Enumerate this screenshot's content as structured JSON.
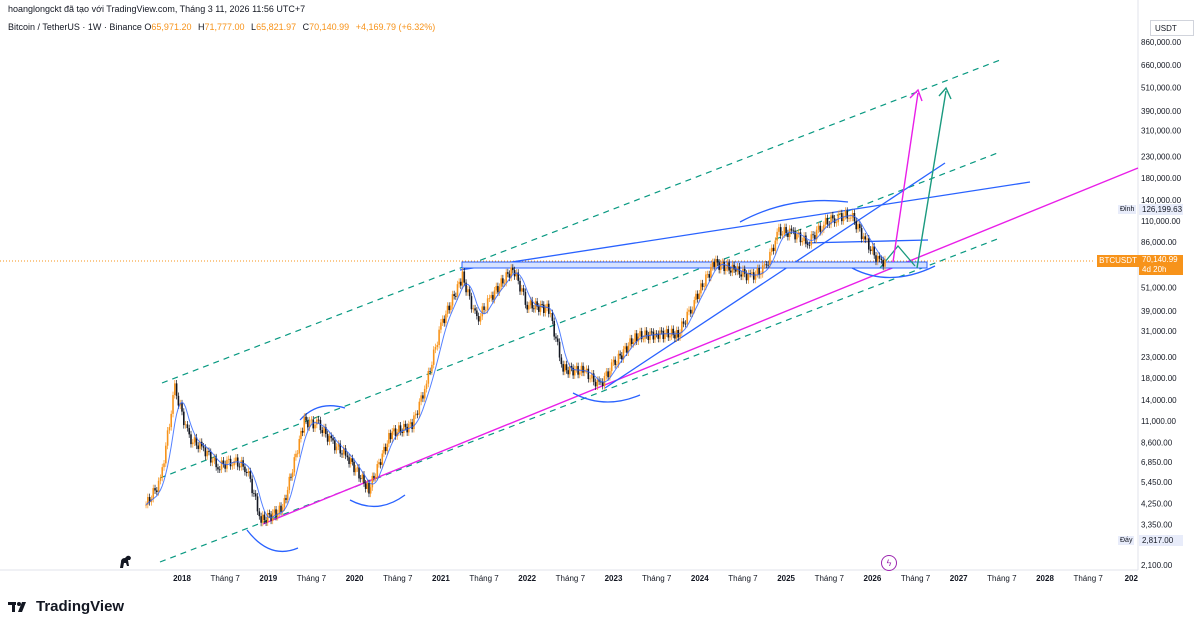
{
  "header": {
    "attribution": "hoanglongckt đã tạo với TradingView.com, Tháng 3 11, 2026 11:56 UTC+7",
    "symbol": "Bitcoin / TetherUS · 1W · Binance",
    "open_label": "O",
    "open": "65,971.20",
    "high_label": "H",
    "high": "71,777.00",
    "low_label": "L",
    "low": "65,821.97",
    "close_label": "C",
    "close": "70,140.99",
    "change": "+4,169.79 (+6.32%)"
  },
  "axis": {
    "currency": "USDT",
    "y_ticks": [
      "860,000.00",
      "660,000.00",
      "510,000.00",
      "390,000.00",
      "310,000.00",
      "230,000.00",
      "180,000.00",
      "140,000.00",
      "110,000.00",
      "86,000.00",
      "51,000.00",
      "39,000.00",
      "31,000.00",
      "23,000.00",
      "18,000.00",
      "14,000.00",
      "11,000.00",
      "8,600.00",
      "6,850.00",
      "5,450.00",
      "4,250.00",
      "3,350.00",
      "2,100.00"
    ],
    "x_ticks": [
      "2018",
      "Tháng 7",
      "2019",
      "Tháng 7",
      "2020",
      "Tháng 7",
      "2021",
      "Tháng 7",
      "2022",
      "Tháng 7",
      "2023",
      "Tháng 7",
      "2024",
      "Tháng 7",
      "2025",
      "Tháng 7",
      "2026",
      "Tháng 7",
      "2027",
      "Tháng 7",
      "2028",
      "Tháng 7",
      "202"
    ]
  },
  "markers": {
    "symbol_tag": "BTCUSDT",
    "last_price": "70,140.99",
    "countdown": "4d 20h",
    "high_label": "Đỉnh",
    "high_value": "126,199.63",
    "low_label": "Đáy",
    "low_value": "2,817.00"
  },
  "footer": {
    "brand": "TradingView"
  },
  "colors": {
    "up": "#f7931a",
    "ma": "#2962ff",
    "channel": "#089981",
    "pink": "#e91ee8",
    "blue": "#2962ff",
    "teal": "#1a9a7f"
  },
  "chart_data": {
    "type": "line",
    "title": "Bitcoin / TetherUS · 1W · Binance",
    "scale": "log",
    "ylim": [
      2100,
      860000
    ],
    "series": [
      {
        "name": "Bitcoin / TetherUS",
        "x": [
          "2017-08",
          "2017-10",
          "2017-12",
          "2018-02",
          "2018-04",
          "2018-06",
          "2018-08",
          "2018-10",
          "2018-12",
          "2019-03",
          "2019-06",
          "2019-08",
          "2019-10",
          "2019-12",
          "2020-03",
          "2020-06",
          "2020-09",
          "2020-11",
          "2021-01",
          "2021-04",
          "2021-06",
          "2021-08",
          "2021-11",
          "2022-01",
          "2022-04",
          "2022-06",
          "2022-09",
          "2022-11",
          "2023-01",
          "2023-04",
          "2023-07",
          "2023-10",
          "2023-12",
          "2024-03",
          "2024-06",
          "2024-08",
          "2024-10",
          "2024-12",
          "2025-02",
          "2025-04",
          "2025-06",
          "2025-08",
          "2025-10",
          "2025-12",
          "2026-02",
          "2026-03"
        ],
        "y": [
          4200,
          5500,
          16000,
          9000,
          8000,
          6500,
          7000,
          6400,
          3500,
          4000,
          11000,
          10500,
          8500,
          7300,
          5000,
          9500,
          10500,
          17000,
          33000,
          58000,
          35000,
          46000,
          64000,
          42000,
          40000,
          20000,
          19500,
          16500,
          21000,
          29000,
          30000,
          30000,
          42000,
          68000,
          62000,
          58000,
          63000,
          97000,
          96000,
          85000,
          105000,
          115000,
          118000,
          88000,
          68000,
          70140.99
        ]
      }
    ]
  }
}
